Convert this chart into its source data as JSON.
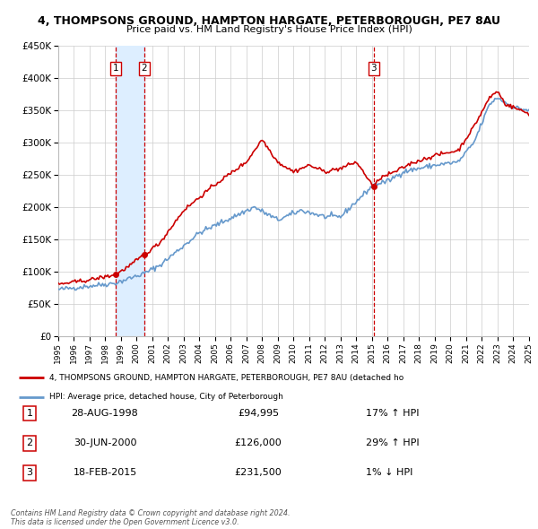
{
  "title": "4, THOMPSONS GROUND, HAMPTON HARGATE, PETERBOROUGH, PE7 8AU",
  "subtitle": "Price paid vs. HM Land Registry's House Price Index (HPI)",
  "xlim": [
    1995,
    2025
  ],
  "ylim": [
    0,
    450000
  ],
  "yticks": [
    0,
    50000,
    100000,
    150000,
    200000,
    250000,
    300000,
    350000,
    400000,
    450000
  ],
  "ytick_labels": [
    "£0",
    "£50K",
    "£100K",
    "£150K",
    "£200K",
    "£250K",
    "£300K",
    "£350K",
    "£400K",
    "£450K"
  ],
  "xticks": [
    1995,
    1996,
    1997,
    1998,
    1999,
    2000,
    2001,
    2002,
    2003,
    2004,
    2005,
    2006,
    2007,
    2008,
    2009,
    2010,
    2011,
    2012,
    2013,
    2014,
    2015,
    2016,
    2017,
    2018,
    2019,
    2020,
    2021,
    2022,
    2023,
    2024,
    2025
  ],
  "sales": [
    {
      "date_num": 1998.65,
      "price": 94995,
      "label": "1"
    },
    {
      "date_num": 2000.49,
      "price": 126000,
      "label": "2"
    },
    {
      "date_num": 2015.12,
      "price": 231500,
      "label": "3"
    }
  ],
  "vline_dates": [
    1998.65,
    2000.49,
    2015.12
  ],
  "shade_between": [
    1998.65,
    2000.49
  ],
  "legend_entries": [
    "4, THOMPSONS GROUND, HAMPTON HARGATE, PETERBOROUGH, PE7 8AU (detached ho",
    "HPI: Average price, detached house, City of Peterborough"
  ],
  "table_rows": [
    {
      "num": "1",
      "date": "28-AUG-1998",
      "price": "£94,995",
      "hpi": "17% ↑ HPI"
    },
    {
      "num": "2",
      "date": "30-JUN-2000",
      "price": "£126,000",
      "hpi": "29% ↑ HPI"
    },
    {
      "num": "3",
      "date": "18-FEB-2015",
      "price": "£231,500",
      "hpi": "1% ↓ HPI"
    }
  ],
  "footer": "Contains HM Land Registry data © Crown copyright and database right 2024.\nThis data is licensed under the Open Government Licence v3.0.",
  "red_color": "#cc0000",
  "blue_color": "#6699cc",
  "shade_color": "#ddeeff",
  "bg_color": "#ffffff",
  "grid_color": "#cccccc",
  "hpi_anchors": {
    "1995.0": 72000,
    "1998.65": 82000,
    "2000.49": 97000,
    "2001.5": 110000,
    "2004.0": 160000,
    "2007.5": 200000,
    "2009.0": 180000,
    "2010.5": 195000,
    "2012.0": 185000,
    "2013.0": 185000,
    "2015.12": 235000,
    "2016.0": 240000,
    "2017.0": 255000,
    "2019.0": 265000,
    "2020.5": 270000,
    "2021.5": 300000,
    "2022.5": 360000,
    "2023.0": 370000,
    "2024.0": 355000,
    "2025.0": 350000
  },
  "prop_anchors": {
    "1995.0": 80000,
    "1997.0": 87000,
    "1998.65": 94995,
    "1999.5": 108000,
    "2000.49": 126000,
    "2001.5": 145000,
    "2003.0": 195000,
    "2005.0": 235000,
    "2007.0": 270000,
    "2008.0": 305000,
    "2009.0": 270000,
    "2010.0": 255000,
    "2011.0": 265000,
    "2012.0": 255000,
    "2013.0": 260000,
    "2014.0": 270000,
    "2015.12": 231500,
    "2015.5": 245000,
    "2016.5": 255000,
    "2017.5": 268000,
    "2019.0": 280000,
    "2020.5": 288000,
    "2021.5": 325000,
    "2022.5": 370000,
    "2023.0": 380000,
    "2023.5": 360000,
    "2024.0": 355000,
    "2025.0": 345000
  }
}
